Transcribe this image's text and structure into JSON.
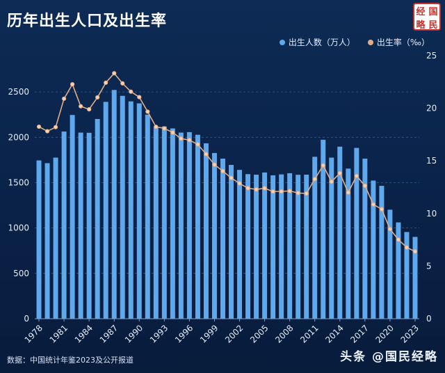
{
  "title": "历年出生人口及出生率",
  "legend": {
    "births": "出生人数（万人）",
    "rate": "出生率（‰）"
  },
  "source": "数据：中国统计年鉴2023及公开报道",
  "watermark": "头条 @国民经略",
  "logo_chars": [
    "经",
    "国",
    "略",
    "民"
  ],
  "colors": {
    "bar": "#5ea8ee",
    "line": "#e3ad86",
    "grid": "#3a5c8a",
    "text": "#e6eefc",
    "background": "#0b2346"
  },
  "chart_data": {
    "type": "bar",
    "title": "历年出生人口及出生率",
    "xlabel": "",
    "ylabel": "",
    "x": [
      1978,
      1979,
      1980,
      1981,
      1982,
      1983,
      1984,
      1985,
      1986,
      1987,
      1988,
      1989,
      1990,
      1991,
      1992,
      1993,
      1994,
      1995,
      1996,
      1997,
      1998,
      1999,
      2000,
      2001,
      2002,
      2003,
      2004,
      2005,
      2006,
      2007,
      2008,
      2009,
      2010,
      2011,
      2012,
      2013,
      2014,
      2015,
      2016,
      2017,
      2018,
      2019,
      2020,
      2021,
      2022,
      2023
    ],
    "x_ticks": [
      1978,
      1981,
      1984,
      1987,
      1990,
      1993,
      1996,
      1999,
      2002,
      2005,
      2008,
      2011,
      2014,
      2017,
      2020,
      2023
    ],
    "ylim": [
      0,
      2900
    ],
    "y_ticks": [
      0,
      500,
      1000,
      1500,
      2000,
      2500
    ],
    "y2lim": [
      0,
      25
    ],
    "y2_ticks": [
      0,
      5,
      10,
      15,
      20,
      25
    ],
    "series": [
      {
        "name": "出生人数（万人）",
        "type": "bar",
        "axis": "left",
        "values": [
          1745,
          1715,
          1776,
          2064,
          2246,
          2052,
          2050,
          2202,
          2391,
          2522,
          2457,
          2396,
          2374,
          2250,
          2113,
          2120,
          2098,
          2052,
          2057,
          2028,
          1934,
          1827,
          1765,
          1696,
          1641,
          1594,
          1588,
          1612,
          1581,
          1591,
          1604,
          1587,
          1588,
          1785,
          1973,
          1776,
          1897,
          1655,
          1883,
          1765,
          1523,
          1465,
          1202,
          1062,
          956,
          902
        ]
      },
      {
        "name": "出生率（‰）",
        "type": "line",
        "axis": "right",
        "values": [
          18.25,
          17.82,
          18.21,
          20.91,
          22.28,
          20.19,
          19.9,
          21.04,
          22.43,
          23.33,
          22.37,
          21.58,
          21.06,
          19.68,
          18.24,
          18.09,
          17.7,
          17.12,
          16.98,
          16.57,
          15.64,
          14.64,
          14.03,
          13.38,
          12.86,
          12.41,
          12.29,
          12.4,
          12.09,
          12.1,
          12.14,
          11.95,
          11.9,
          13.27,
          14.57,
          13.03,
          13.83,
          11.99,
          13.57,
          12.64,
          10.86,
          10.41,
          8.52,
          7.52,
          6.77,
          6.39
        ]
      }
    ],
    "grid": true,
    "legend_position": "top-right"
  }
}
